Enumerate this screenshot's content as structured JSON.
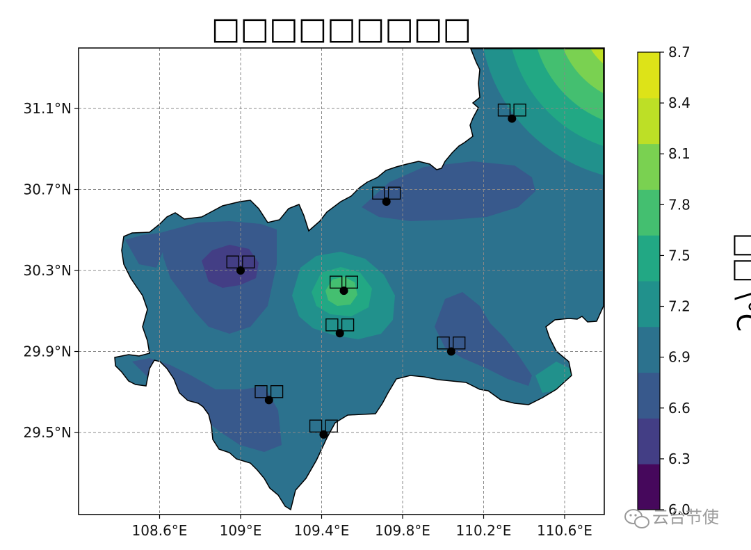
{
  "title": "□□□□□□□□□",
  "colorbar": {
    "label": "□□ \\°C",
    "ticks": [
      "8.7",
      "8.4",
      "8.1",
      "7.8",
      "7.5",
      "7.2",
      "6.9",
      "6.6",
      "6.3",
      "6.0"
    ],
    "levels": [
      6.0,
      6.3,
      6.6,
      6.9,
      7.2,
      7.5,
      7.8,
      8.1,
      8.4,
      8.7
    ],
    "colors": [
      "#46085c",
      "#433e85",
      "#38598c",
      "#2c728e",
      "#21918c",
      "#22a884",
      "#44bf70",
      "#7ad151",
      "#bddf26",
      "#dde318"
    ]
  },
  "axes": {
    "lon_ticks": [
      "108.6°E",
      "109°E",
      "109.4°E",
      "109.8°E",
      "110.2°E",
      "110.6°E"
    ],
    "lat_ticks": [
      "31.1°N",
      "30.7°N",
      "30.3°N",
      "29.9°N",
      "29.5°N"
    ],
    "lon_values": [
      108.6,
      109.0,
      109.4,
      109.8,
      110.2,
      110.6
    ],
    "lat_values": [
      31.1,
      30.7,
      30.3,
      29.9,
      29.5
    ],
    "lon_range": [
      108.2,
      110.8
    ],
    "lat_range": [
      29.1,
      31.4
    ],
    "grid": true
  },
  "stations": [
    {
      "name": "□□",
      "lon": 110.34,
      "lat": 31.05
    },
    {
      "name": "□□",
      "lon": 109.72,
      "lat": 30.64
    },
    {
      "name": "□□",
      "lon": 109.0,
      "lat": 30.3
    },
    {
      "name": "□□",
      "lon": 109.51,
      "lat": 30.2
    },
    {
      "name": "□□",
      "lon": 109.49,
      "lat": 29.99
    },
    {
      "name": "□□",
      "lon": 110.04,
      "lat": 29.9
    },
    {
      "name": "□□",
      "lon": 109.14,
      "lat": 29.66
    },
    {
      "name": "□□",
      "lon": 109.41,
      "lat": 29.49
    }
  ],
  "watermark": {
    "text": "云台节使",
    "icon": "wechat-icon"
  }
}
